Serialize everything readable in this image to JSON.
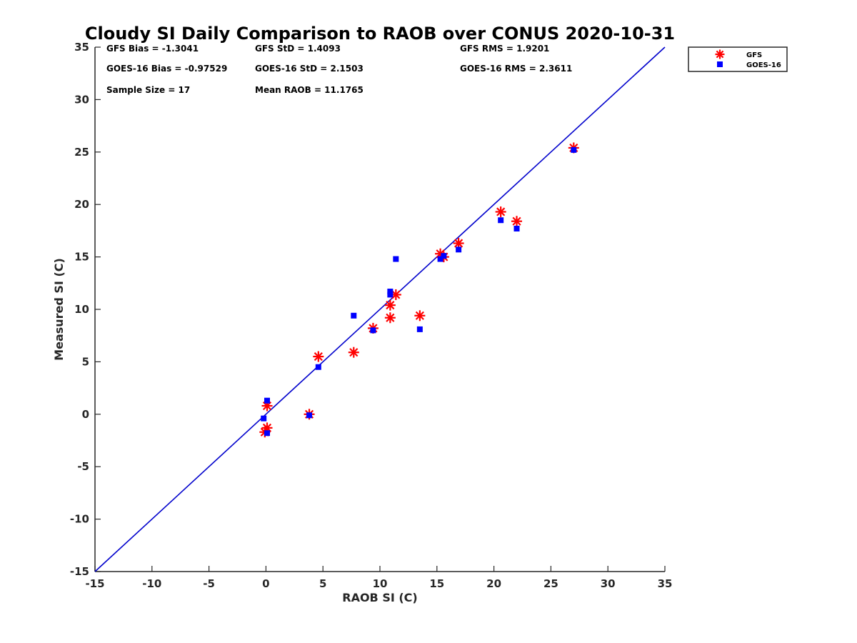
{
  "chart_data": {
    "type": "scatter",
    "title": "Cloudy SI Daily Comparison to RAOB over CONUS 2020-10-31",
    "xlabel": "RAOB SI (C)",
    "ylabel": "Measured SI (C)",
    "xlim": [
      -15,
      35
    ],
    "ylim": [
      -15,
      35
    ],
    "xticks": [
      "-15",
      "-10",
      "-5",
      "0",
      "5",
      "10",
      "15",
      "20",
      "25",
      "30",
      "35"
    ],
    "yticks": [
      "-15",
      "-10",
      "-5",
      "0",
      "5",
      "10",
      "15",
      "20",
      "25",
      "30",
      "35"
    ],
    "reference_line": {
      "name": "1:1 line",
      "color": "#0000cc",
      "from": [
        -15,
        -15
      ],
      "to": [
        35,
        35
      ]
    },
    "stats": [
      {
        "name": "gfs-bias",
        "text": "GFS Bias = -1.3041"
      },
      {
        "name": "gfs-std",
        "text": "GFS StD = 1.4093"
      },
      {
        "name": "gfs-rms",
        "text": "GFS RMS = 1.9201"
      },
      {
        "name": "goes-bias",
        "text": "GOES-16 Bias = -0.97529"
      },
      {
        "name": "goes-std",
        "text": "GOES-16 StD = 2.1503"
      },
      {
        "name": "goes-rms",
        "text": "GOES-16 RMS = 2.3611"
      },
      {
        "name": "sample-size",
        "text": "Sample Size = 17"
      },
      {
        "name": "mean-raob",
        "text": "Mean RAOB = 11.1765"
      }
    ],
    "legend_position": "outside-top-right",
    "series": [
      {
        "name": "GFS",
        "marker": "asterisk",
        "color": "#ff0000",
        "points": [
          [
            -0.1,
            -1.7
          ],
          [
            0.1,
            -1.3
          ],
          [
            0.1,
            0.8
          ],
          [
            3.8,
            0.0
          ],
          [
            4.6,
            5.5
          ],
          [
            7.7,
            5.9
          ],
          [
            9.4,
            8.2
          ],
          [
            10.9,
            9.2
          ],
          [
            10.9,
            10.4
          ],
          [
            11.4,
            11.4
          ],
          [
            13.5,
            9.4
          ],
          [
            15.3,
            15.3
          ],
          [
            15.6,
            15.0
          ],
          [
            16.9,
            16.3
          ],
          [
            20.6,
            19.3
          ],
          [
            22.0,
            18.4
          ],
          [
            27.0,
            25.4
          ]
        ]
      },
      {
        "name": "GOES-16",
        "marker": "square",
        "color": "#0000ff",
        "points": [
          [
            -0.2,
            -0.4
          ],
          [
            0.1,
            -1.8
          ],
          [
            0.1,
            1.3
          ],
          [
            3.8,
            -0.1
          ],
          [
            4.6,
            4.5
          ],
          [
            7.7,
            9.4
          ],
          [
            9.4,
            8.0
          ],
          [
            10.9,
            11.4
          ],
          [
            10.9,
            11.7
          ],
          [
            11.4,
            14.8
          ],
          [
            13.5,
            8.1
          ],
          [
            15.3,
            14.8
          ],
          [
            15.6,
            15.1
          ],
          [
            16.9,
            15.7
          ],
          [
            20.6,
            18.5
          ],
          [
            22.0,
            17.7
          ],
          [
            27.0,
            25.2
          ]
        ]
      }
    ]
  }
}
